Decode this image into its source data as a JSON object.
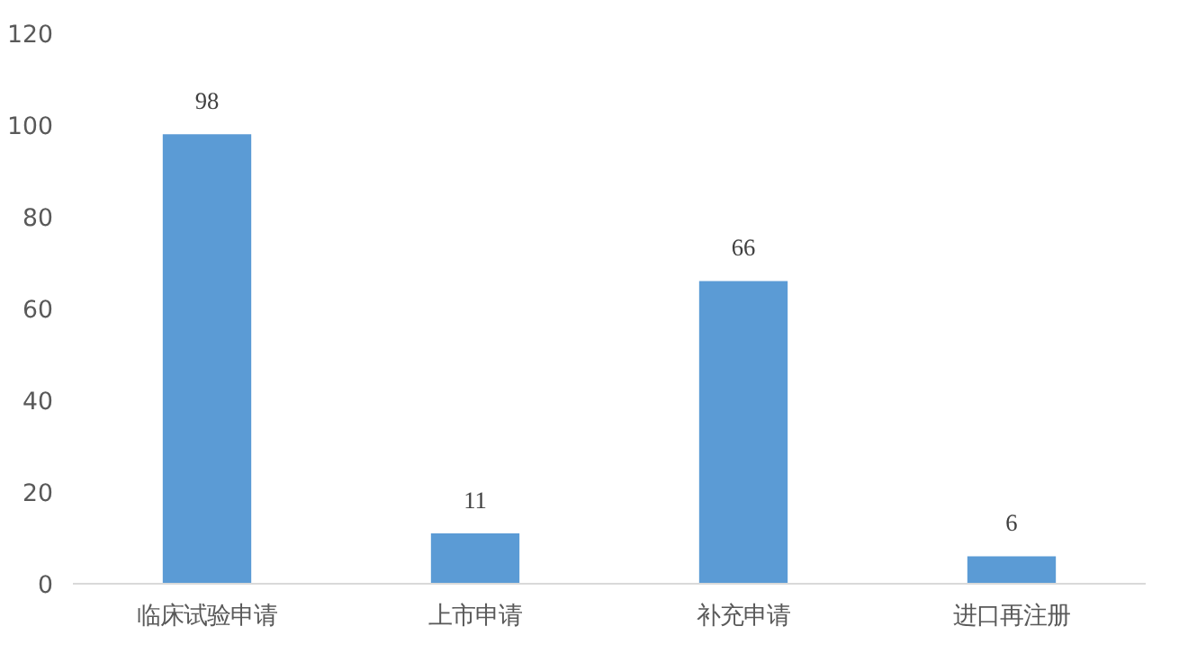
{
  "chart_data": {
    "type": "bar",
    "categories": [
      "临床试验申请",
      "上市申请",
      "补充申请",
      "进口再注册"
    ],
    "values": [
      98,
      11,
      66,
      6
    ],
    "color": "#5b9bd5",
    "ylim": [
      0,
      120
    ],
    "yticks": [
      0,
      20,
      40,
      60,
      80,
      100,
      120
    ],
    "grid": false,
    "data_labels": true
  }
}
